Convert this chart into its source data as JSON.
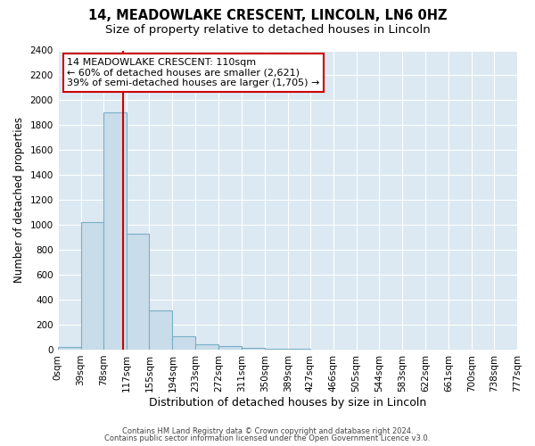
{
  "title": "14, MEADOWLAKE CRESCENT, LINCOLN, LN6 0HZ",
  "subtitle": "Size of property relative to detached houses in Lincoln",
  "xlabel": "Distribution of detached houses by size in Lincoln",
  "ylabel": "Number of detached properties",
  "bar_edges": [
    0,
    39,
    78,
    117,
    155,
    194,
    233,
    272,
    311,
    350,
    389,
    427,
    466,
    505,
    544,
    583,
    622,
    661,
    700,
    738,
    777
  ],
  "bar_heights": [
    20,
    1025,
    1900,
    930,
    315,
    105,
    45,
    25,
    15,
    10,
    5,
    0,
    0,
    0,
    0,
    0,
    0,
    0,
    0,
    0
  ],
  "bar_color": "#c9dce9",
  "bar_edge_color": "#7aaec8",
  "vline_x": 110,
  "vline_color": "#cc0000",
  "ylim": [
    0,
    2400
  ],
  "yticks": [
    0,
    200,
    400,
    600,
    800,
    1000,
    1200,
    1400,
    1600,
    1800,
    2000,
    2200,
    2400
  ],
  "annotation_title": "14 MEADOWLAKE CRESCENT: 110sqm",
  "annotation_line1": "← 60% of detached houses are smaller (2,621)",
  "annotation_line2": "39% of semi-detached houses are larger (1,705) →",
  "footer1": "Contains HM Land Registry data © Crown copyright and database right 2024.",
  "footer2": "Contains public sector information licensed under the Open Government Licence v3.0.",
  "fig_bg_color": "#ffffff",
  "plot_bg_color": "#dce9f2",
  "grid_color": "#ffffff",
  "title_fontsize": 10.5,
  "subtitle_fontsize": 9.5,
  "tick_label_fontsize": 7.5,
  "xlabel_fontsize": 9,
  "ylabel_fontsize": 8.5,
  "annotation_fontsize": 8
}
